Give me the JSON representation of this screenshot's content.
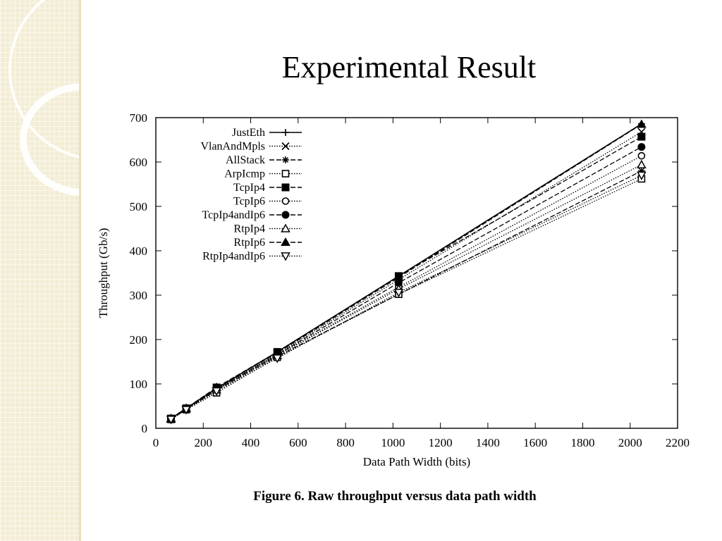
{
  "slide": {
    "title": "Experimental Result",
    "caption": "Figure 6. Raw throughput versus data path width"
  },
  "chart_data": {
    "type": "line",
    "xlabel": "Data Path Width (bits)",
    "ylabel": "Throughput (Gb/s)",
    "xlim": [
      0,
      2200
    ],
    "ylim": [
      0,
      700
    ],
    "xticks": [
      0,
      200,
      400,
      600,
      800,
      1000,
      1200,
      1400,
      1600,
      1800,
      2000,
      2200
    ],
    "yticks": [
      0,
      100,
      200,
      300,
      400,
      500,
      600,
      700
    ],
    "grid": false,
    "legend_position": "top-left",
    "x": [
      64,
      128,
      256,
      512,
      1024,
      2048
    ],
    "series": [
      {
        "name": "JustEth",
        "marker": "plus",
        "dash": "solid",
        "values": [
          22,
          45,
          90,
          172,
          343,
          686
        ]
      },
      {
        "name": "VlanAndMpls",
        "marker": "x",
        "dash": "dotted",
        "values": [
          22,
          44,
          88,
          168,
          335,
          668
        ]
      },
      {
        "name": "AllStack",
        "marker": "star",
        "dash": "dashed",
        "values": [
          20,
          43,
          86,
          162,
          302,
          580
        ]
      },
      {
        "name": "ArpIcmp",
        "marker": "open-square",
        "dash": "dotted",
        "values": [
          20,
          42,
          80,
          160,
          302,
          562
        ]
      },
      {
        "name": "TcpIp4",
        "marker": "filled-square",
        "dash": "dashed",
        "values": [
          22,
          45,
          92,
          172,
          343,
          657
        ]
      },
      {
        "name": "TcpIp6",
        "marker": "open-circle",
        "dash": "dotted",
        "values": [
          21,
          44,
          88,
          165,
          318,
          614
        ]
      },
      {
        "name": "TcpIp4andIp6",
        "marker": "filled-circle",
        "dash": "dashed",
        "values": [
          21,
          44,
          89,
          166,
          328,
          634
        ]
      },
      {
        "name": "RtpIp4",
        "marker": "open-triangle",
        "dash": "dotted",
        "values": [
          21,
          44,
          87,
          164,
          314,
          594
        ]
      },
      {
        "name": "RtpIp6",
        "marker": "filled-triangle",
        "dash": "dashed",
        "values": [
          22,
          45,
          92,
          170,
          340,
          685
        ]
      },
      {
        "name": "RtpIp4andIp6",
        "marker": "open-triangle-down",
        "dash": "dotted",
        "values": [
          20,
          42,
          84,
          158,
          306,
          570
        ]
      }
    ]
  }
}
